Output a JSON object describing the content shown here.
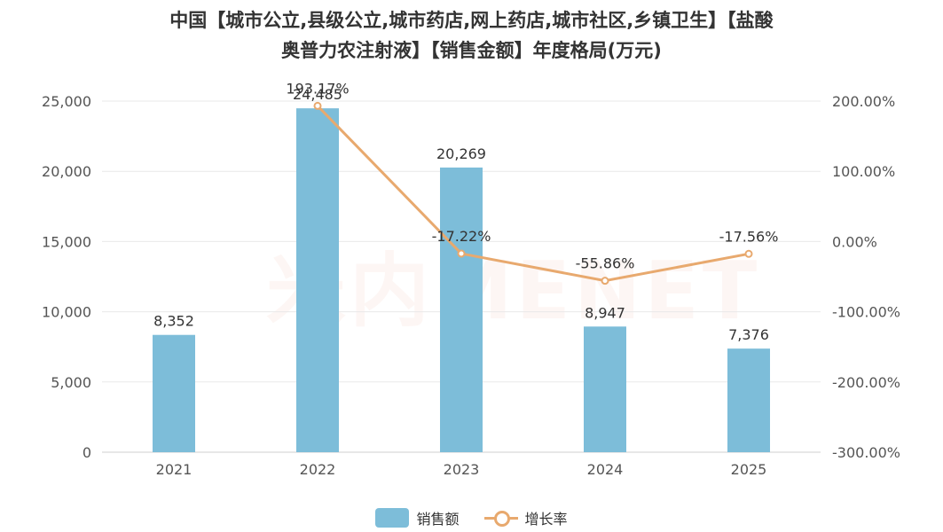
{
  "chart_data": {
    "type": "bar",
    "title_line1": "中国【城市公立,县级公立,城市药店,网上药店,城市社区,乡镇卫生】【盐酸",
    "title_line2": "奥普力农注射液】【销售金额】年度格局(万元)",
    "categories": [
      "2021",
      "2022",
      "2023",
      "2024",
      "2025"
    ],
    "series": [
      {
        "name": "销售额",
        "type": "bar",
        "axis": "left",
        "values": [
          8352,
          24485,
          20269,
          8947,
          7376
        ],
        "labels": [
          "8,352",
          "24,485",
          "20,269",
          "8,947",
          "7,376"
        ],
        "color": "#7dbdd9"
      },
      {
        "name": "增长率",
        "type": "line",
        "axis": "right",
        "values": [
          null,
          193.17,
          -17.22,
          -55.86,
          -17.56
        ],
        "labels": [
          "",
          "193.17%",
          "-17.22%",
          "-55.86%",
          "-17.56%"
        ],
        "color": "#e8a96e"
      }
    ],
    "y_left": {
      "ylim": [
        0,
        25000
      ],
      "ticks": [
        "0",
        "5,000",
        "10,000",
        "15,000",
        "20,000",
        "25,000"
      ],
      "tick_values": [
        0,
        5000,
        10000,
        15000,
        20000,
        25000
      ]
    },
    "y_right": {
      "ylim": [
        -300,
        200
      ],
      "ticks": [
        "-300.00%",
        "-200.00%",
        "-100.00%",
        "0.00%",
        "100.00%",
        "200.00%"
      ],
      "tick_values": [
        -300,
        -200,
        -100,
        0,
        100,
        200
      ]
    },
    "grid": true,
    "legend_position": "bottom"
  },
  "watermark": "米内MENET"
}
